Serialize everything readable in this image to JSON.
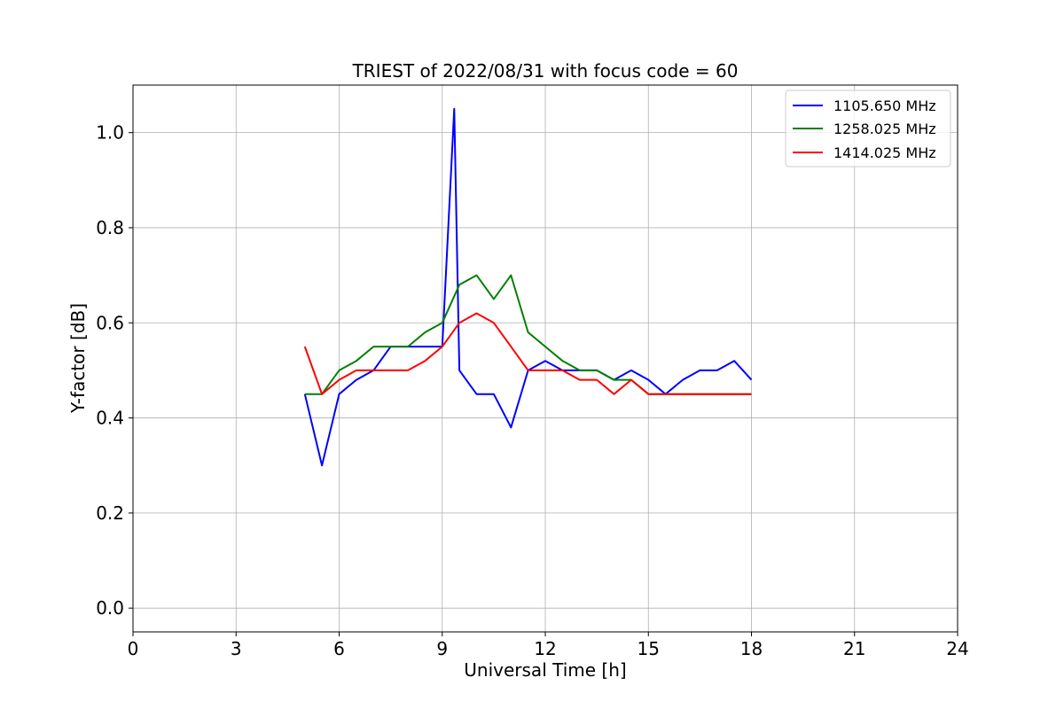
{
  "chart_data": {
    "type": "line",
    "title": "TRIEST of 2022/08/31 with focus code = 60",
    "xlabel": "Universal Time [h]",
    "ylabel": "Y-factor [dB]",
    "xlim": [
      0,
      24
    ],
    "ylim": [
      -0.05,
      1.1
    ],
    "xticks": [
      "0",
      "3",
      "6",
      "9",
      "12",
      "15",
      "18",
      "21",
      "24"
    ],
    "yticks": [
      "0.0",
      "0.2",
      "0.4",
      "0.6",
      "0.8",
      "1.0"
    ],
    "grid": true,
    "legend_position": "top-right",
    "x_range_of_data": [
      5.0,
      18.0
    ],
    "series": [
      {
        "name": "1105.650 MHz",
        "color": "#0000ff",
        "x": [
          5.0,
          5.5,
          6.0,
          6.5,
          7.0,
          7.5,
          8.0,
          8.5,
          9.0,
          9.35,
          9.5,
          10.0,
          10.5,
          11.0,
          11.5,
          12.0,
          12.5,
          13.0,
          13.5,
          14.0,
          14.5,
          15.0,
          15.5,
          16.0,
          16.5,
          17.0,
          17.5,
          18.0
        ],
        "values": [
          0.45,
          0.3,
          0.45,
          0.48,
          0.5,
          0.55,
          0.55,
          0.55,
          0.55,
          1.05,
          0.5,
          0.45,
          0.45,
          0.38,
          0.5,
          0.52,
          0.5,
          0.5,
          0.5,
          0.48,
          0.5,
          0.48,
          0.45,
          0.48,
          0.5,
          0.5,
          0.52,
          0.48
        ]
      },
      {
        "name": "1258.025 MHz",
        "color": "#008000",
        "x": [
          5.0,
          5.5,
          6.0,
          6.5,
          7.0,
          7.5,
          8.0,
          8.5,
          9.0,
          9.5,
          10.0,
          10.5,
          11.0,
          11.5,
          12.0,
          12.5,
          13.0,
          13.5,
          14.0,
          14.5,
          15.0,
          15.5,
          16.0,
          16.5,
          17.0,
          17.5,
          18.0
        ],
        "values": [
          0.45,
          0.45,
          0.5,
          0.52,
          0.55,
          0.55,
          0.55,
          0.58,
          0.6,
          0.68,
          0.7,
          0.65,
          0.7,
          0.58,
          0.55,
          0.52,
          0.5,
          0.5,
          0.48,
          0.48,
          0.45,
          0.45,
          0.45,
          0.45,
          0.45,
          0.45,
          0.45
        ]
      },
      {
        "name": "1414.025 MHz",
        "color": "#ff0000",
        "x": [
          5.0,
          5.5,
          6.0,
          6.5,
          7.0,
          7.5,
          8.0,
          8.5,
          9.0,
          9.5,
          10.0,
          10.5,
          11.0,
          11.5,
          12.0,
          12.5,
          13.0,
          13.5,
          14.0,
          14.5,
          15.0,
          15.5,
          16.0,
          16.5,
          17.0,
          17.5,
          18.0
        ],
        "values": [
          0.55,
          0.45,
          0.48,
          0.5,
          0.5,
          0.5,
          0.5,
          0.52,
          0.55,
          0.6,
          0.62,
          0.6,
          0.55,
          0.5,
          0.5,
          0.5,
          0.48,
          0.48,
          0.45,
          0.48,
          0.45,
          0.45,
          0.45,
          0.45,
          0.45,
          0.45,
          0.45
        ]
      }
    ]
  }
}
